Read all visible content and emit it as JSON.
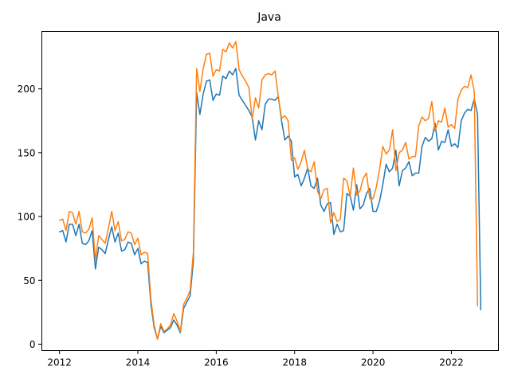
{
  "chart_data": {
    "type": "line",
    "title": "Java",
    "xlabel": "",
    "ylabel": "",
    "xlim": [
      2011.55,
      2023.2
    ],
    "ylim": [
      -5,
      245
    ],
    "grid": false,
    "x_ticks": [
      2012,
      2014,
      2016,
      2018,
      2020,
      2022
    ],
    "x_tick_labels": [
      "2012",
      "2014",
      "2016",
      "2018",
      "2020",
      "2022"
    ],
    "y_ticks": [
      0,
      50,
      100,
      150,
      200
    ],
    "y_tick_labels": [
      "0",
      "50",
      "100",
      "150",
      "200"
    ],
    "x_start": 2012.0,
    "x_step": 0.083333,
    "series": [
      {
        "color": "#1f77b4",
        "values": [
          88,
          89,
          80,
          94,
          94,
          85,
          94,
          79,
          78,
          81,
          89,
          59,
          76,
          74,
          71,
          82,
          92,
          80,
          87,
          73,
          74,
          80,
          79,
          70,
          75,
          63,
          65,
          64,
          31,
          13,
          4,
          14,
          9,
          11,
          13,
          19,
          15,
          9,
          28,
          33,
          38,
          65,
          197,
          180,
          196,
          206,
          207,
          191,
          196,
          195,
          210,
          208,
          214,
          211,
          216,
          195,
          191,
          187,
          183,
          178,
          160,
          175,
          168,
          188,
          192,
          192,
          191,
          194,
          175,
          160,
          163,
          159,
          131,
          133,
          124,
          130,
          138,
          124,
          122,
          130,
          109,
          104,
          110,
          111,
          86,
          94,
          88,
          89,
          118,
          116,
          105,
          125,
          106,
          109,
          118,
          122,
          104,
          104,
          112,
          125,
          141,
          135,
          138,
          152,
          124,
          136,
          138,
          143,
          132,
          134,
          134,
          155,
          162,
          159,
          161,
          173,
          152,
          159,
          158,
          168,
          155,
          157,
          154,
          175,
          181,
          184,
          183,
          192,
          180,
          27
        ]
      },
      {
        "color": "#ff7f0e",
        "values": [
          97,
          98,
          89,
          104,
          103,
          94,
          104,
          88,
          87,
          90,
          99,
          66,
          85,
          82,
          79,
          91,
          104,
          89,
          96,
          81,
          82,
          88,
          87,
          78,
          83,
          70,
          72,
          71,
          35,
          15,
          4,
          16,
          10,
          12,
          15,
          24,
          18,
          10,
          31,
          36,
          42,
          72,
          216,
          198,
          216,
          227,
          228,
          210,
          215,
          214,
          231,
          229,
          236,
          232,
          237,
          215,
          210,
          206,
          201,
          176,
          193,
          185,
          207,
          211,
          212,
          211,
          214,
          194,
          177,
          179,
          175,
          144,
          146,
          137,
          143,
          152,
          137,
          135,
          143,
          120,
          114,
          121,
          122,
          95,
          103,
          96,
          98,
          130,
          128,
          116,
          138,
          117,
          120,
          130,
          134,
          114,
          114,
          123,
          137,
          155,
          149,
          152,
          168,
          136,
          150,
          152,
          158,
          145,
          147,
          147,
          171,
          178,
          175,
          177,
          190,
          167,
          175,
          174,
          185,
          170,
          172,
          169,
          192,
          199,
          202,
          201,
          211,
          198,
          30
        ]
      }
    ]
  }
}
